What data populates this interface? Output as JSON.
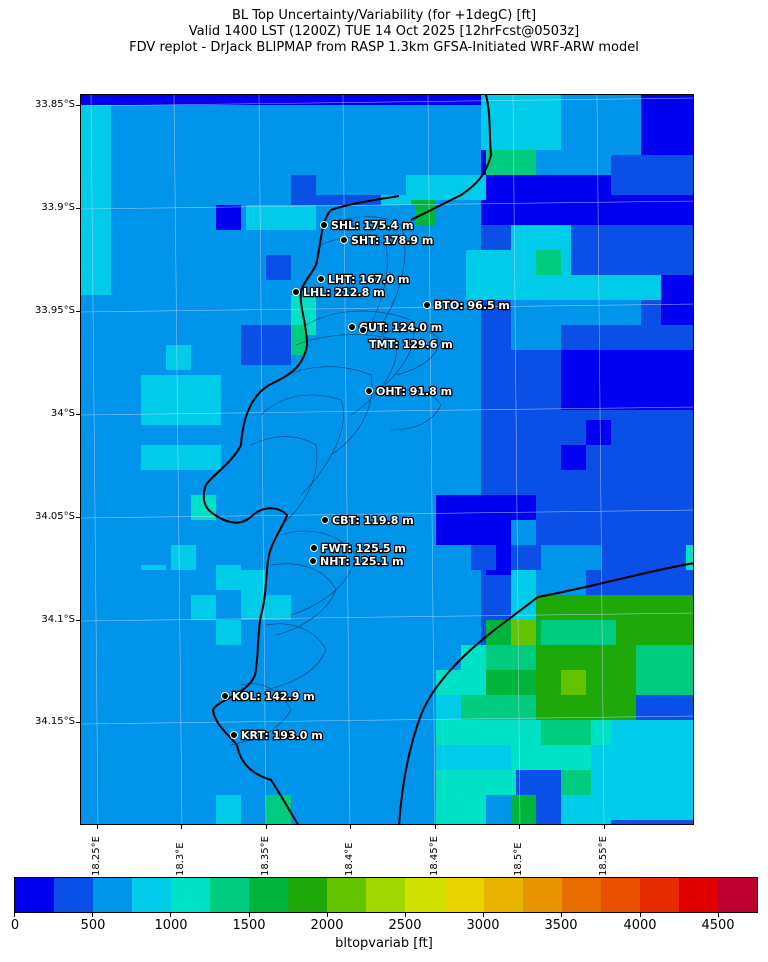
{
  "title": {
    "line1": "BL Top Uncertainty/Variability (for +1degC) [ft]",
    "line2": "Valid 1400 LST (1200Z) TUE 14 Oct 2025 [12hrFcst@0503z]",
    "line3": "FDV replot - DrJack BLIPMAP from RASP 1.3km GFSA-Initiated WRF-ARW model"
  },
  "axes": {
    "lat_labels": [
      "33.85°S",
      "33.9°S",
      "33.95°S",
      "34°S",
      "34.05°S",
      "34.1°S",
      "34.15°S"
    ],
    "lon_labels": [
      "18.25°E",
      "18.3°E",
      "18.35°E",
      "18.4°E",
      "18.45°E",
      "18.5°E",
      "18.55°E"
    ]
  },
  "stations": [
    {
      "code": "SHL",
      "label": "SHL: 175.4 m",
      "height_m": 175.4
    },
    {
      "code": "SHT",
      "label": "SHT: 178.9 m",
      "height_m": 178.9
    },
    {
      "code": "LHT",
      "label": "LHT: 167.0 m",
      "height_m": 167.0
    },
    {
      "code": "LHL",
      "label": "LHL: 212.8 m",
      "height_m": 212.8
    },
    {
      "code": "BTO",
      "label": "BTO: 96.5 m",
      "height_m": 96.5
    },
    {
      "code": "GUT",
      "label": "GUT: 124.0 m",
      "height_m": 124.0
    },
    {
      "code": "TMT",
      "label": "TMT: 129.6 m",
      "height_m": 129.6
    },
    {
      "code": "OHT",
      "label": "OHT: 91.8 m",
      "height_m": 91.8
    },
    {
      "code": "CBT",
      "label": "CBT: 119.8 m",
      "height_m": 119.8
    },
    {
      "code": "FWT",
      "label": "FWT: 125.5 m",
      "height_m": 125.5
    },
    {
      "code": "NHT",
      "label": "NHT: 125.1 m",
      "height_m": 125.1
    },
    {
      "code": "KOL",
      "label": "KOL: 142.9 m",
      "height_m": 142.9
    },
    {
      "code": "KRT",
      "label": "KRT: 193.0 m",
      "height_m": 193.0
    }
  ],
  "colorbar": {
    "title": "bltopvariab [ft]",
    "tick_labels": [
      "0",
      "500",
      "1000",
      "1500",
      "2000",
      "2500",
      "3000",
      "3500",
      "4000",
      "4500"
    ],
    "colors": [
      "#0000f0",
      "#0a4fe6",
      "#0094ea",
      "#00ccea",
      "#00e2c6",
      "#00cc80",
      "#00b43c",
      "#1ea80a",
      "#64c300",
      "#a2d600",
      "#d0e100",
      "#e8d400",
      "#e8b400",
      "#e89400",
      "#e86c00",
      "#e85000",
      "#e82a00",
      "#e00000",
      "#c00030"
    ]
  },
  "field_colors": {
    "base": "#0a4fe6",
    "dark_blue": "#0000f0",
    "mid_blue": "#0094ea",
    "cyan": "#00ccea",
    "turquoise": "#00e2c6",
    "green": "#00cc80",
    "dark_green": "#00b43c",
    "grass": "#1ea80a",
    "lime": "#64c300"
  }
}
